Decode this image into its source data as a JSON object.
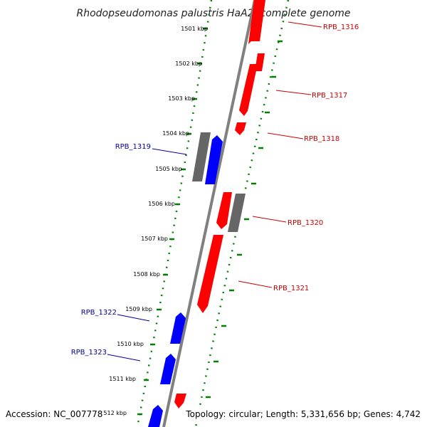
{
  "title": "Rhodopseudomonas palustris HaA2, complete genome",
  "footer": {
    "accession": "Accession: NC_007778",
    "stats": "Topology: circular; Length: 5,331,656 bp; Genes: 4,742"
  },
  "ticks": [
    "1501 kbp",
    "1502 kbp",
    "1503 kbp",
    "1504 kbp",
    "1505 kbp",
    "1506 kbp",
    "1507 kbp",
    "1508 kbp",
    "1509 kbp",
    "1510 kbp",
    "1511 kbp",
    "1512 kbp"
  ],
  "genes_right": [
    {
      "label": "RPB_1316",
      "color": "#cc0000"
    },
    {
      "label": "RPB_1317",
      "color": "#cc0000"
    },
    {
      "label": "RPB_1318",
      "color": "#cc0000"
    },
    {
      "label": "RPB_1320",
      "color": "#cc0000"
    },
    {
      "label": "RPB_1321",
      "color": "#cc0000"
    }
  ],
  "genes_left": [
    {
      "label": "RPB_1319",
      "color": "#000099"
    },
    {
      "label": "RPB_1322",
      "color": "#000099"
    },
    {
      "label": "RPB_1323",
      "color": "#000099"
    }
  ],
  "colors": {
    "forward_gene": "#ff0000",
    "reverse_gene": "#0000ff",
    "other_feature": "#666666",
    "backbone": "#808080",
    "tick_dots": "#008000"
  }
}
